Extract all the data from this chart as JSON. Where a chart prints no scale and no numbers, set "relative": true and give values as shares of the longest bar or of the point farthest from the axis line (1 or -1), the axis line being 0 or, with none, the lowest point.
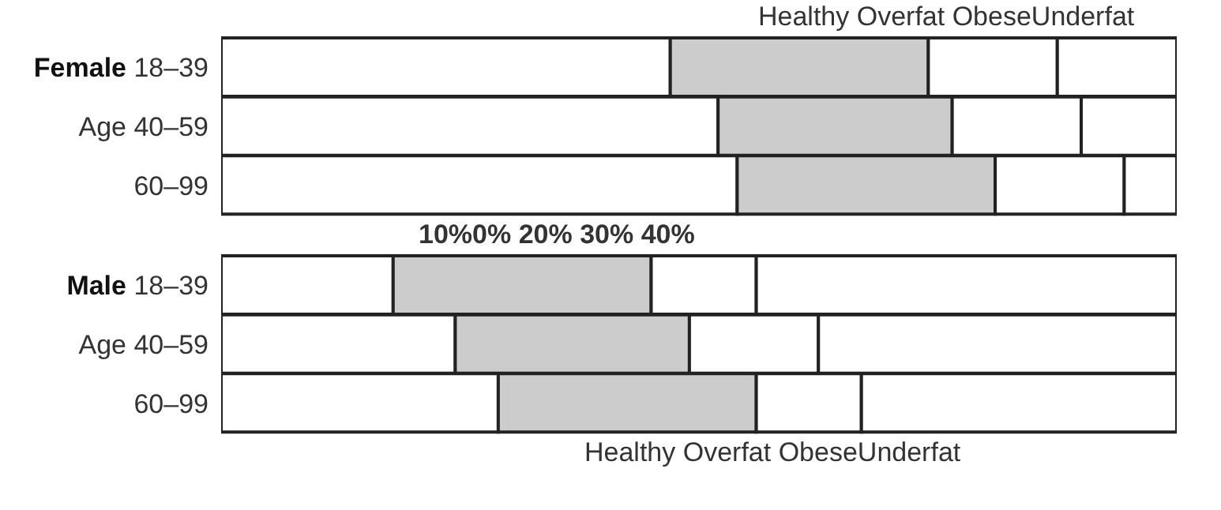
{
  "chart_data": [
    {
      "type": "bar",
      "orientation": "horizontal",
      "stacked": true,
      "relative": true,
      "title": "Female",
      "categories": [
        "18–39",
        "Age 40–59",
        "60–99"
      ],
      "series": [
        {
          "color": "#ffffff",
          "values": [
            0.47,
            0.52,
            0.54
          ]
        },
        {
          "color": "#cccccc",
          "values": [
            0.27,
            0.245,
            0.27
          ]
        },
        {
          "color": "#ffffff",
          "values": [
            0.135,
            0.135,
            0.135
          ]
        },
        {
          "color": "#ffffff",
          "values": [
            0.125,
            0.1,
            0.055
          ]
        }
      ],
      "annotations": [
        "Healthy Overfat ObeseUnderfat",
        "10%0% 20% 30% 40%"
      ],
      "grid": false,
      "legend": false
    },
    {
      "type": "bar",
      "orientation": "horizontal",
      "stacked": true,
      "relative": true,
      "title": "Male",
      "categories": [
        "18–39",
        "Age 40–59",
        "60–99"
      ],
      "series": [
        {
          "color": "#ffffff",
          "values": [
            0.18,
            0.245,
            0.29
          ]
        },
        {
          "color": "#cccccc",
          "values": [
            0.27,
            0.245,
            0.27
          ]
        },
        {
          "color": "#ffffff",
          "values": [
            0.11,
            0.135,
            0.11
          ]
        },
        {
          "color": "#ffffff",
          "values": [
            0.44,
            0.375,
            0.33
          ]
        }
      ],
      "annotations": [
        "Healthy Overfat ObeseUnderfat"
      ],
      "grid": false,
      "legend": false
    }
  ]
}
